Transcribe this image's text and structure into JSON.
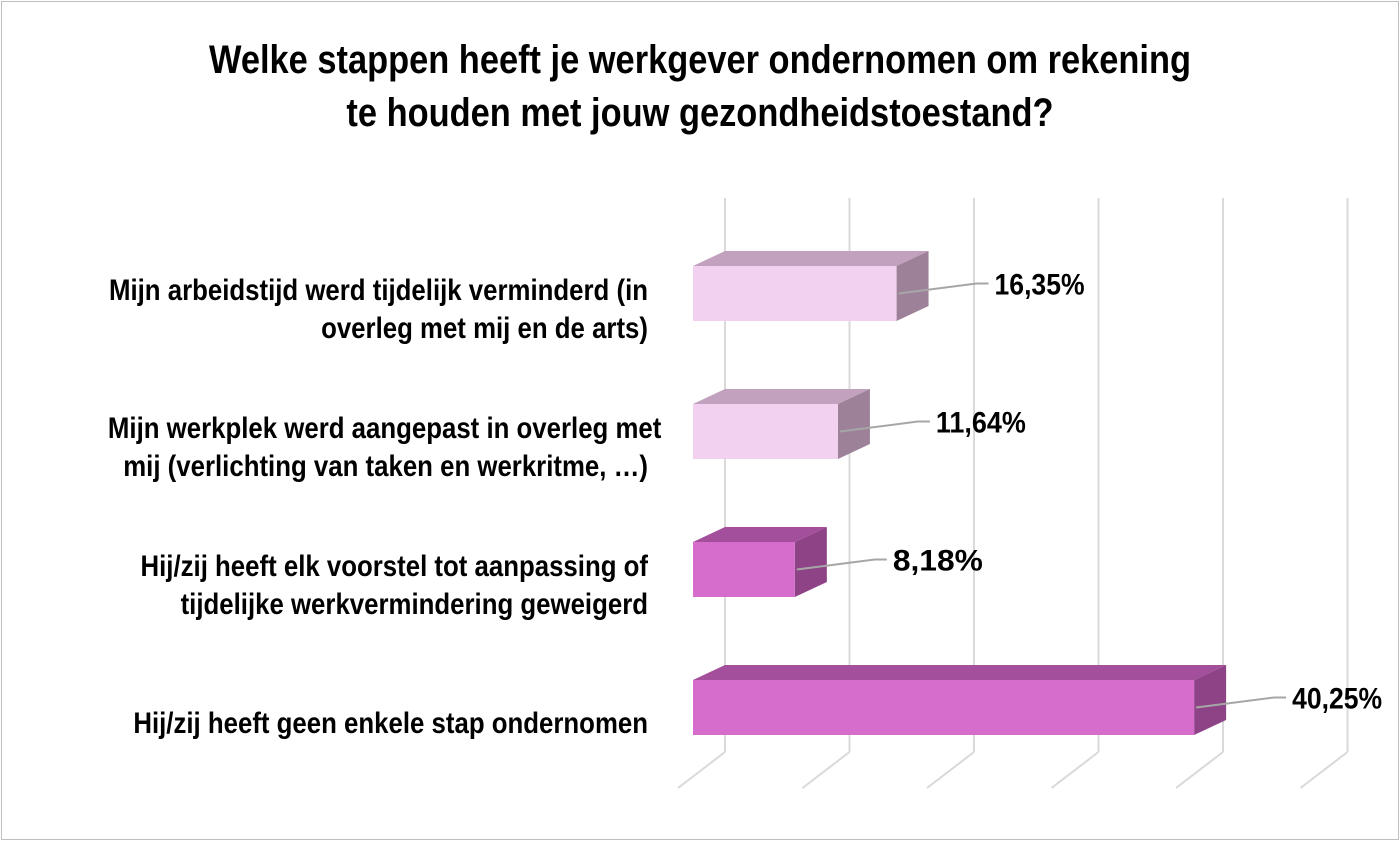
{
  "chart_data": {
    "type": "bar",
    "orientation": "horizontal",
    "title_lines": [
      "Welke stappen heeft je werkgever ondernomen om rekening",
      "te houden met jouw gezondheidstoestand?"
    ],
    "categories": [
      [
        "Mijn arbeidstijd werd tijdelijk verminderd (in",
        "overleg met mij en de arts)"
      ],
      [
        "Mijn werkplek werd aangepast in overleg met",
        "mij (verlichting van taken en werkritme, …)"
      ],
      [
        "Hij/zij heeft elk voorstel tot aanpassing of",
        "tijdelijke werkvermindering geweigerd"
      ],
      [
        "Hij/zij heeft geen enkele stap ondernomen"
      ]
    ],
    "values": [
      16.35,
      11.64,
      8.18,
      40.25
    ],
    "value_labels": [
      "16,35%",
      "11,64%",
      "8,18%",
      "40,25%"
    ],
    "xlim": [
      0,
      50
    ],
    "grid": true,
    "legend": "none",
    "colors": {
      "light_front": "#f2d1f0",
      "light_top": "#c1a1be",
      "light_side": "#9d8199",
      "dark_front": "#d66ccc",
      "dark_top": "#a44f9c",
      "dark_side": "#8e4387",
      "grid": "#d9d9d9",
      "leader": "#a6a6a6"
    },
    "bar_styles": [
      "light",
      "light",
      "dark",
      "dark"
    ]
  }
}
